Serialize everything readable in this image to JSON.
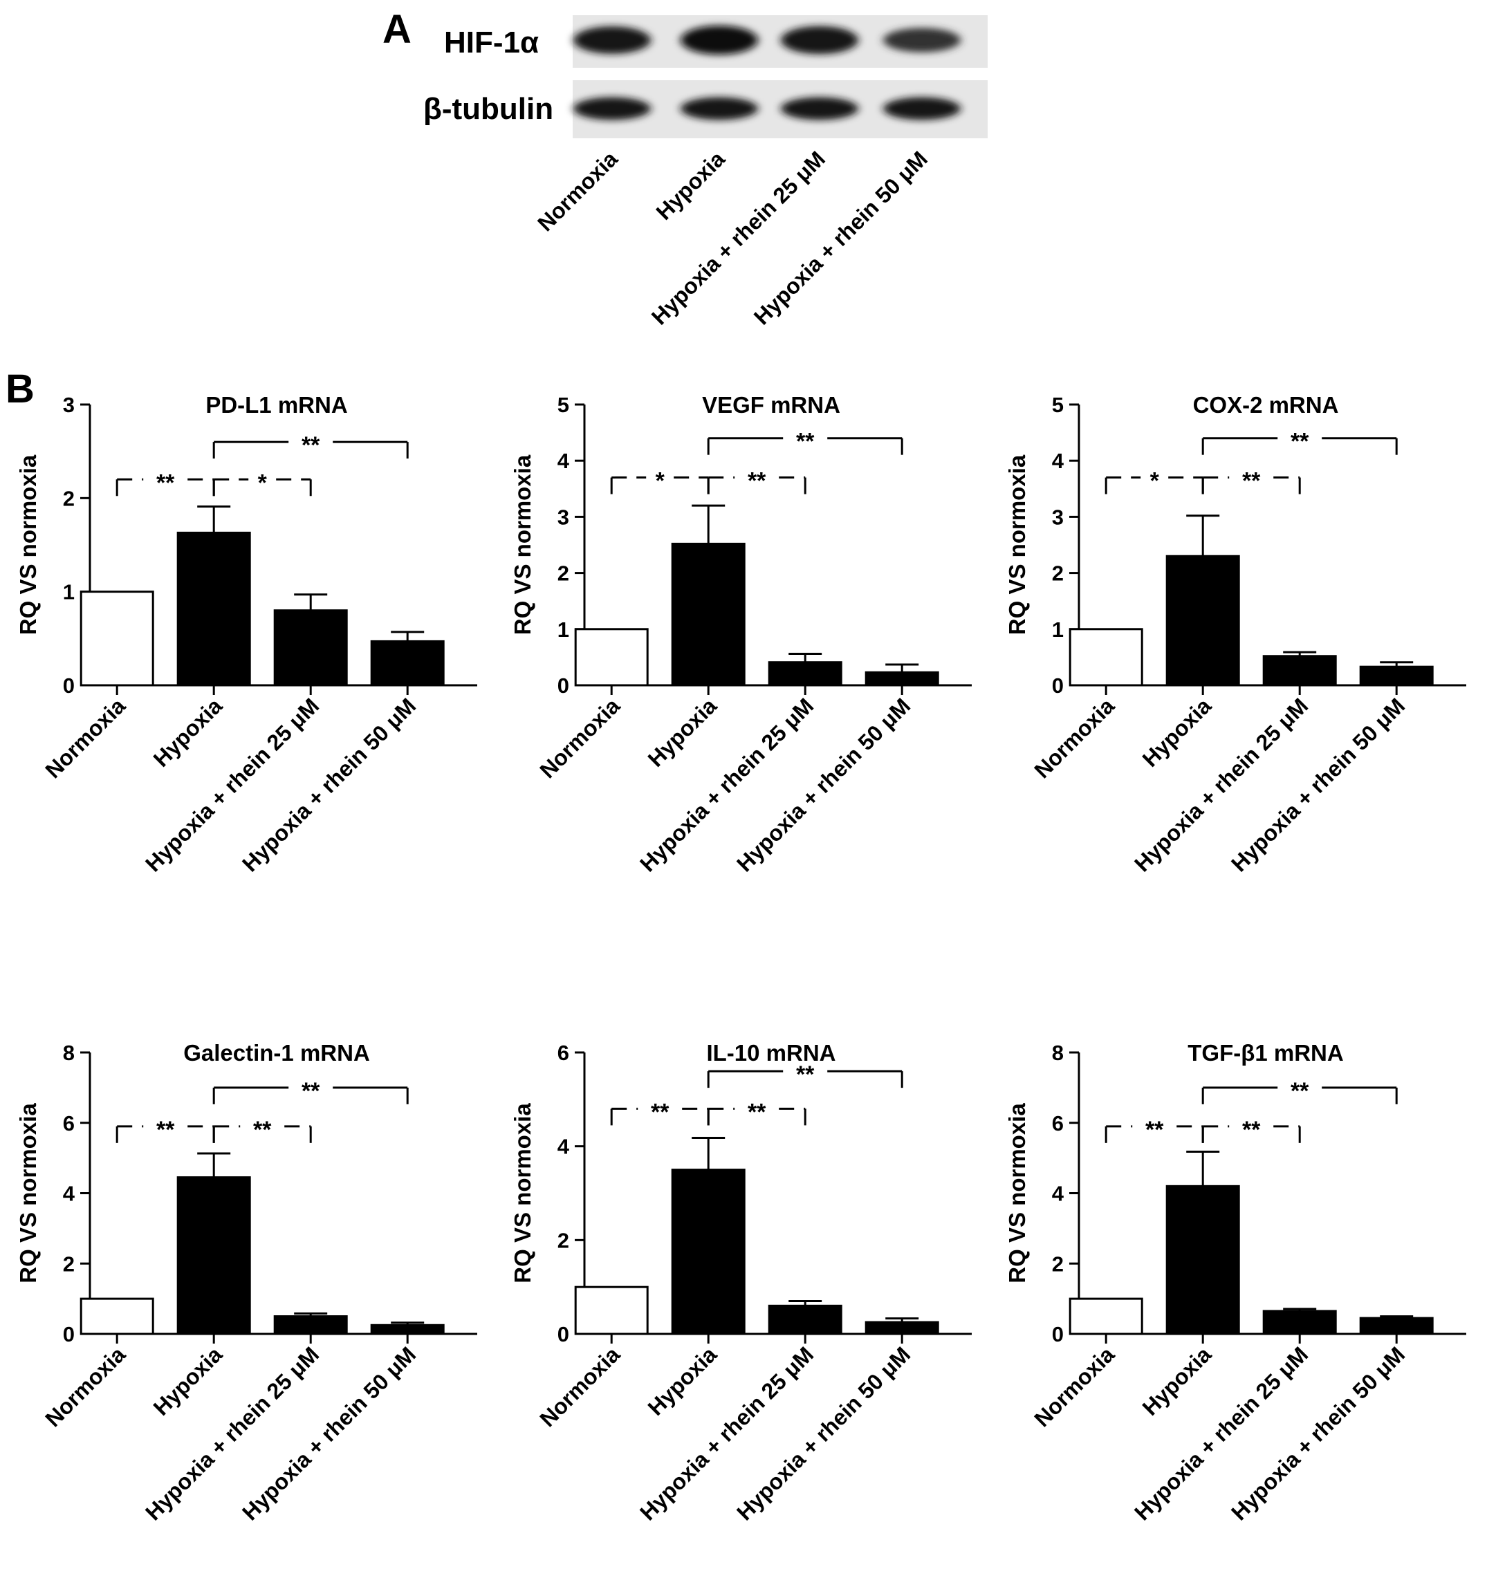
{
  "figure": {
    "panel_a": {
      "letter": "A",
      "blots": [
        {
          "name": "HIF-1α",
          "band_intensity": [
            0.75,
            0.9,
            0.8,
            0.45
          ]
        },
        {
          "name": "β-tubulin",
          "band_intensity": [
            0.8,
            0.8,
            0.8,
            0.8
          ]
        }
      ],
      "lanes": [
        "Normoxia",
        "Hypoxia",
        "Hypoxia + rhein 25 μM",
        "Hypoxia + rhein 50 μM"
      ]
    },
    "panel_b": {
      "letter": "B"
    }
  },
  "chart_data": [
    {
      "type": "bar",
      "title": "PD-L1 mRNA",
      "ylabel": "RQ VS normoxia",
      "categories": [
        "Normoxia",
        "Hypoxia",
        "Hypoxia + rhein 25 μM",
        "Hypoxia + rhein 50 μM"
      ],
      "values": [
        1.0,
        1.63,
        0.8,
        0.47
      ],
      "errors": [
        0,
        0.28,
        0.17,
        0.1
      ],
      "bar_fill": [
        "#ffffff",
        "#000000",
        "#000000",
        "#000000"
      ],
      "ylim": [
        0,
        3
      ],
      "yticks": [
        0,
        1,
        2,
        3
      ],
      "significance": [
        {
          "from": 0,
          "to": 1,
          "label": "**",
          "style": "dashed",
          "y": 2.2
        },
        {
          "from": 1,
          "to": 2,
          "label": "*",
          "style": "dashed",
          "y": 2.2
        },
        {
          "from": 1,
          "to": 3,
          "label": "**",
          "style": "solid",
          "y": 2.6
        }
      ]
    },
    {
      "type": "bar",
      "title": "VEGF mRNA",
      "ylabel": "RQ VS normoxia",
      "categories": [
        "Normoxia",
        "Hypoxia",
        "Hypoxia + rhein 25 μM",
        "Hypoxia + rhein 50 μM"
      ],
      "values": [
        1.0,
        2.52,
        0.41,
        0.23
      ],
      "errors": [
        0,
        0.68,
        0.15,
        0.14
      ],
      "bar_fill": [
        "#ffffff",
        "#000000",
        "#000000",
        "#000000"
      ],
      "ylim": [
        0,
        5
      ],
      "yticks": [
        0,
        1,
        2,
        3,
        4,
        5
      ],
      "significance": [
        {
          "from": 0,
          "to": 1,
          "label": "*",
          "style": "dashed",
          "y": 3.7
        },
        {
          "from": 1,
          "to": 2,
          "label": "**",
          "style": "dashed",
          "y": 3.7
        },
        {
          "from": 1,
          "to": 3,
          "label": "**",
          "style": "solid",
          "y": 4.4
        }
      ]
    },
    {
      "type": "bar",
      "title": "COX-2 mRNA",
      "ylabel": "RQ VS normoxia",
      "categories": [
        "Normoxia",
        "Hypoxia",
        "Hypoxia + rhein 25 μM",
        "Hypoxia + rhein 50 μM"
      ],
      "values": [
        1.0,
        2.3,
        0.52,
        0.33
      ],
      "errors": [
        0,
        0.72,
        0.07,
        0.08
      ],
      "bar_fill": [
        "#ffffff",
        "#000000",
        "#000000",
        "#000000"
      ],
      "ylim": [
        0,
        5
      ],
      "yticks": [
        0,
        1,
        2,
        3,
        4,
        5
      ],
      "significance": [
        {
          "from": 0,
          "to": 1,
          "label": "*",
          "style": "dashed",
          "y": 3.7
        },
        {
          "from": 1,
          "to": 2,
          "label": "**",
          "style": "dashed",
          "y": 3.7
        },
        {
          "from": 1,
          "to": 3,
          "label": "**",
          "style": "solid",
          "y": 4.4
        }
      ]
    },
    {
      "type": "bar",
      "title": "Galectin-1 mRNA",
      "ylabel": "RQ VS normoxia",
      "categories": [
        "Normoxia",
        "Hypoxia",
        "Hypoxia + rhein 25 μM",
        "Hypoxia + rhein 50 μM"
      ],
      "values": [
        1.0,
        4.45,
        0.5,
        0.25
      ],
      "errors": [
        0,
        0.68,
        0.08,
        0.07
      ],
      "bar_fill": [
        "#ffffff",
        "#000000",
        "#000000",
        "#000000"
      ],
      "ylim": [
        0,
        8
      ],
      "yticks": [
        0,
        2,
        4,
        6,
        8
      ],
      "significance": [
        {
          "from": 0,
          "to": 1,
          "label": "**",
          "style": "dashed",
          "y": 5.9
        },
        {
          "from": 1,
          "to": 2,
          "label": "**",
          "style": "dashed",
          "y": 5.9
        },
        {
          "from": 1,
          "to": 3,
          "label": "**",
          "style": "solid",
          "y": 7.0
        }
      ]
    },
    {
      "type": "bar",
      "title": "IL-10 mRNA",
      "ylabel": "RQ VS normoxia",
      "categories": [
        "Normoxia",
        "Hypoxia",
        "Hypoxia + rhein 25 μM",
        "Hypoxia + rhein 50 μM"
      ],
      "values": [
        1.0,
        3.5,
        0.6,
        0.25
      ],
      "errors": [
        0,
        0.68,
        0.1,
        0.08
      ],
      "bar_fill": [
        "#ffffff",
        "#000000",
        "#000000",
        "#000000"
      ],
      "ylim": [
        0,
        6
      ],
      "yticks": [
        0,
        2,
        4,
        6
      ],
      "significance": [
        {
          "from": 0,
          "to": 1,
          "label": "**",
          "style": "dashed",
          "y": 4.8
        },
        {
          "from": 1,
          "to": 2,
          "label": "**",
          "style": "dashed",
          "y": 4.8
        },
        {
          "from": 1,
          "to": 3,
          "label": "**",
          "style": "solid",
          "y": 5.6
        }
      ]
    },
    {
      "type": "bar",
      "title": "TGF-β1 mRNA",
      "ylabel": "RQ VS normoxia",
      "categories": [
        "Normoxia",
        "Hypoxia",
        "Hypoxia + rhein 25 μM",
        "Hypoxia + rhein 50 μM"
      ],
      "values": [
        1.0,
        4.2,
        0.65,
        0.45
      ],
      "errors": [
        0,
        0.98,
        0.06,
        0.05
      ],
      "bar_fill": [
        "#ffffff",
        "#000000",
        "#000000",
        "#000000"
      ],
      "ylim": [
        0,
        8
      ],
      "yticks": [
        0,
        2,
        4,
        6,
        8
      ],
      "significance": [
        {
          "from": 0,
          "to": 1,
          "label": "**",
          "style": "dashed",
          "y": 5.9
        },
        {
          "from": 1,
          "to": 2,
          "label": "**",
          "style": "dashed",
          "y": 5.9
        },
        {
          "from": 1,
          "to": 3,
          "label": "**",
          "style": "solid",
          "y": 7.0
        }
      ]
    }
  ]
}
